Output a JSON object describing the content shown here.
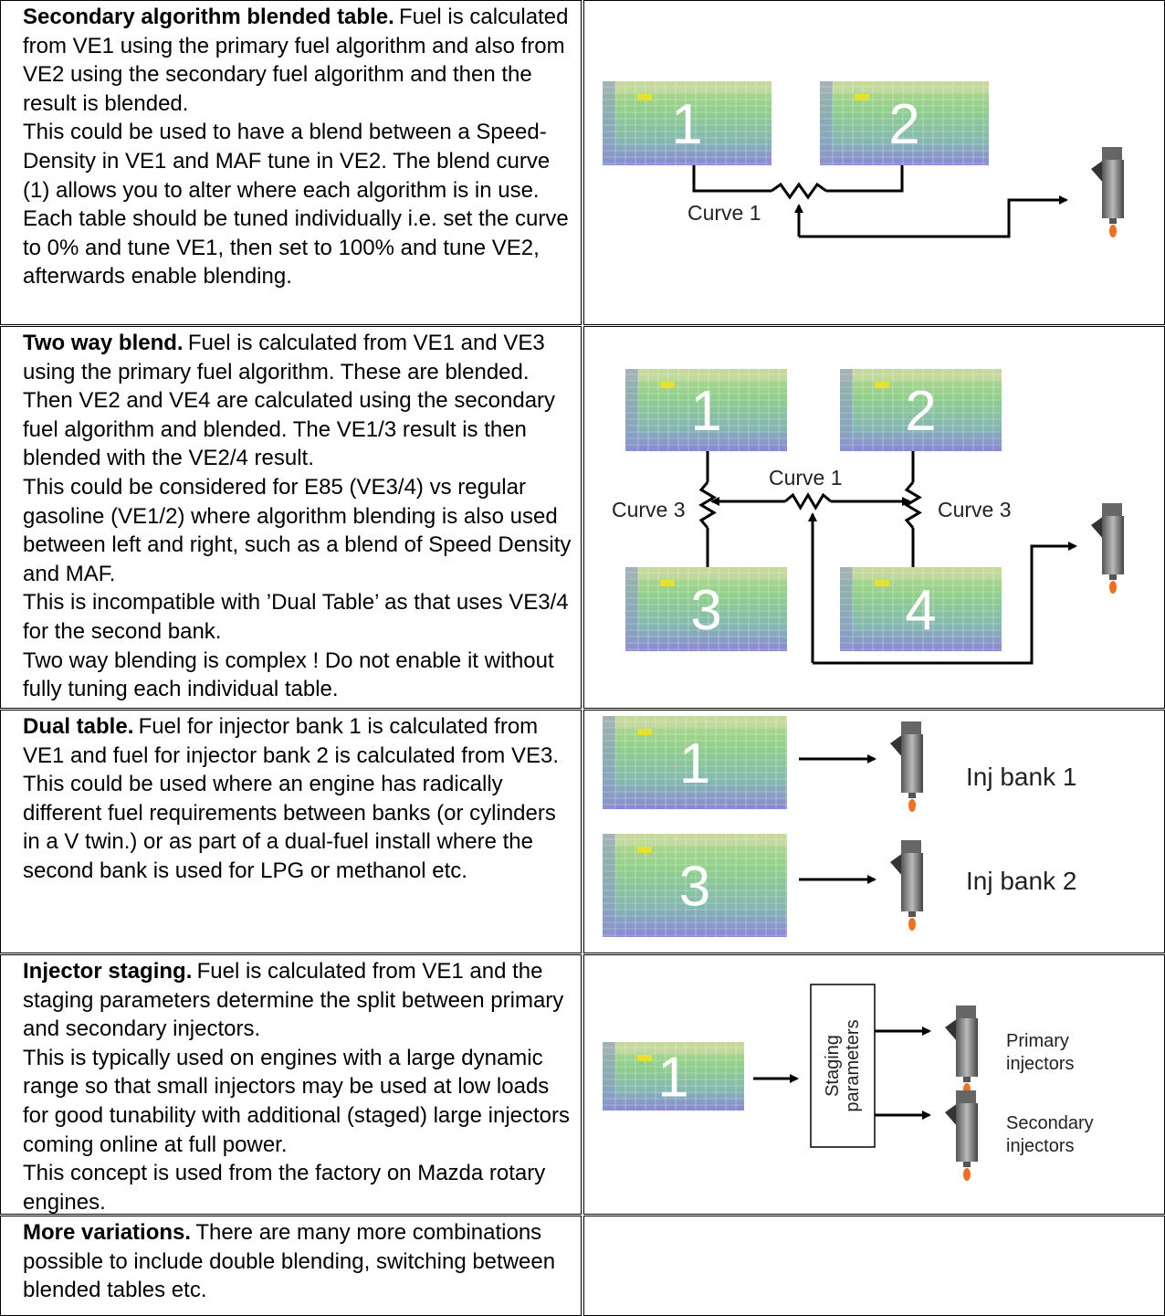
{
  "rows": [
    {
      "lead": "Secondary algorithm blended table.",
      "paragraphs": [
        "Fuel is calculated from VE1 using the primary fuel algorithm and also from VE2 using the secondary fuel algorithm and then the result is blended.",
        "This could be used to have a blend between a Speed-Density in VE1 and MAF tune in VE2. The blend curve (1) allows you to alter where each algorithm is in use. Each table should be tuned individually i.e. set the curve to 0% and tune VE1, then set to 100% and tune VE2, afterwards enable blending."
      ],
      "diagram": {
        "tables": [
          "1",
          "2"
        ],
        "curves": [
          "Curve 1"
        ]
      }
    },
    {
      "lead": "Two way blend.",
      "paragraphs": [
        "Fuel is calculated from VE1 and VE3 using the primary fuel algorithm. These are blended. Then VE2 and VE4 are calculated using the secondary fuel algorithm and blended. The VE1/3 result is then blended with the VE2/4 result.",
        "This could be considered for E85 (VE3/4) vs regular gasoline (VE1/2) where algorithm blending is also used between left and right, such as a blend of Speed Density and MAF.",
        "This is incompatible with ’Dual Table’ as that uses VE3/4 for the second bank.",
        "Two way blending is complex ! Do not enable it without fully tuning each individual table."
      ],
      "diagram": {
        "tables": [
          "1",
          "2",
          "3",
          "4"
        ],
        "curves": [
          "Curve 1",
          "Curve 3",
          "Curve 3"
        ]
      }
    },
    {
      "lead": "Dual table.",
      "paragraphs": [
        "Fuel for injector bank 1 is calculated from VE1 and fuel for injector bank 2 is calculated from VE3.",
        "This could be used where an engine has radically different fuel requirements between banks (or cylinders in a V twin.) or as part of a dual-fuel install where the second bank is used for LPG or methanol etc."
      ],
      "diagram": {
        "tables": [
          "1",
          "3"
        ],
        "outputs": [
          "Inj bank 1",
          "Inj bank 2"
        ]
      }
    },
    {
      "lead": "Injector staging.",
      "paragraphs": [
        "Fuel is calculated from VE1 and the staging parameters determine the split between primary and secondary injectors.",
        "This is typically used on engines with a large dynamic range so that small injectors may be used at low loads for good tunability with additional (staged) large injectors coming online at full power.",
        "This concept is used from the factory on Mazda rotary engines."
      ],
      "diagram": {
        "tables": [
          "1"
        ],
        "box": [
          "Staging",
          "parameters"
        ],
        "outputs": [
          [
            "Primary",
            "injectors"
          ],
          [
            "Secondary",
            "injectors"
          ]
        ]
      }
    },
    {
      "lead": "More variations.",
      "paragraphs": [
        "There are many more combinations possible to include double blending, switching between blended tables etc."
      ]
    }
  ]
}
